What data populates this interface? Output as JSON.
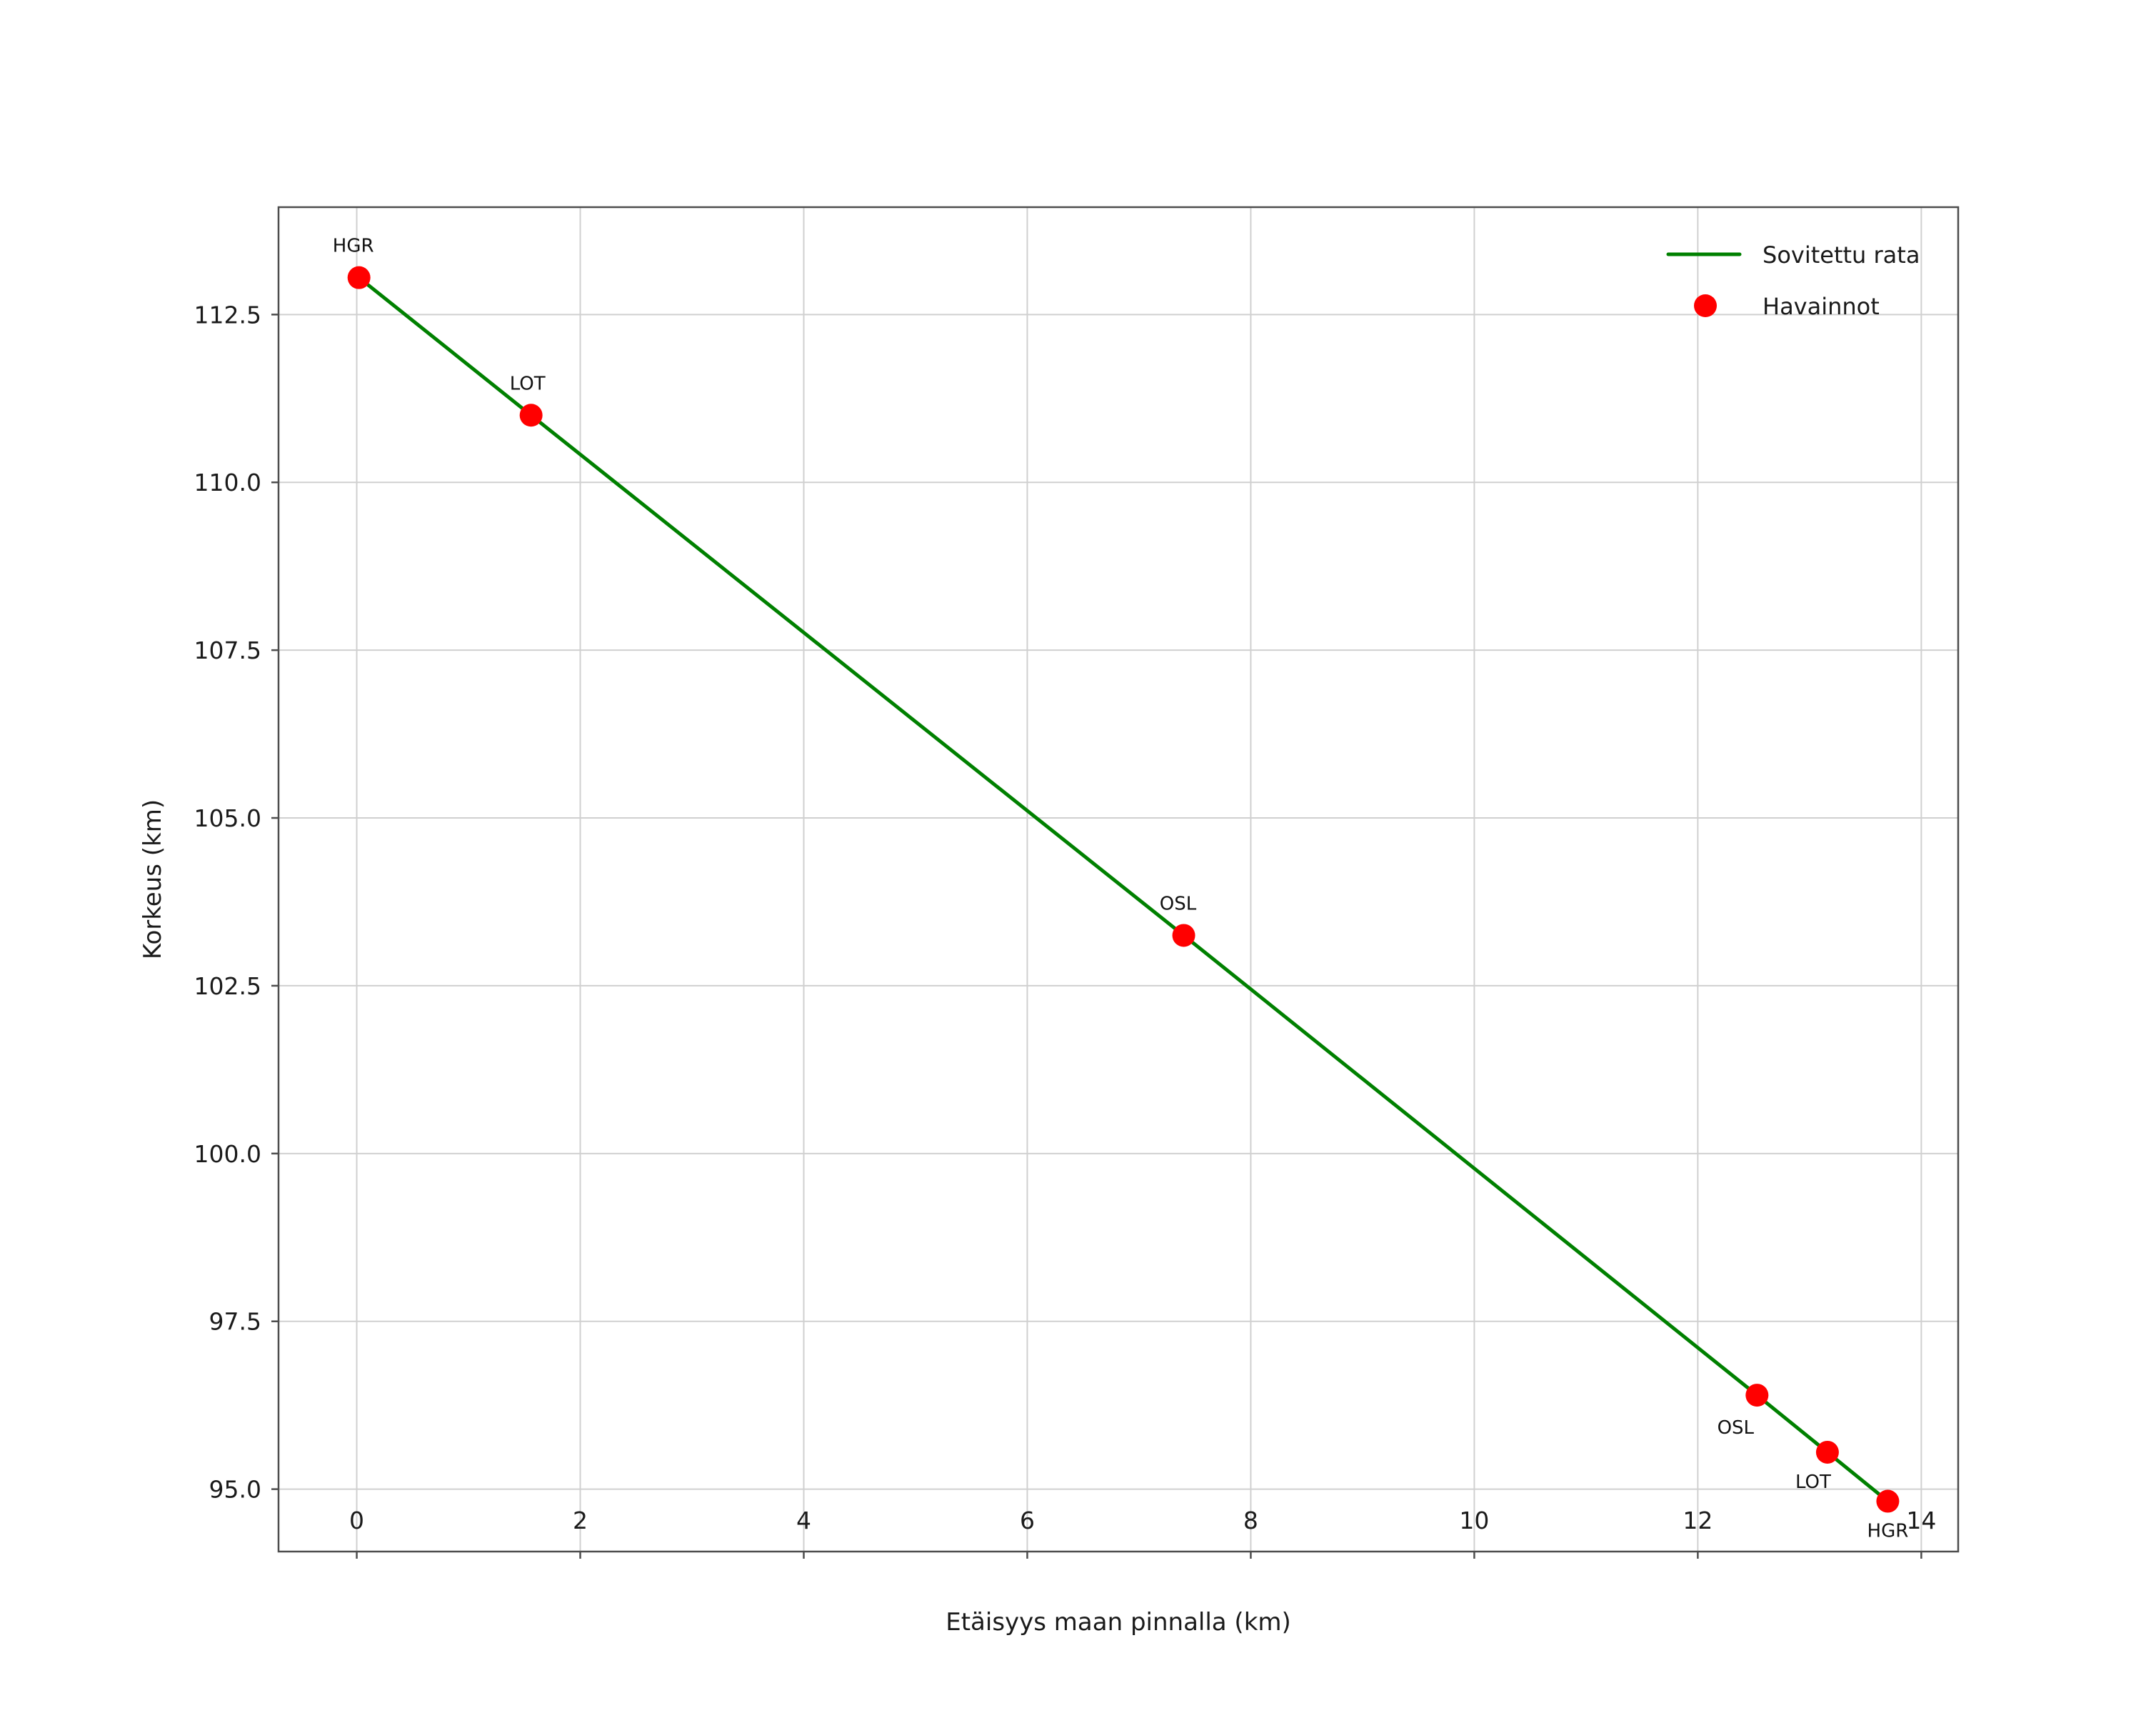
{
  "page": {
    "background": "#ffffff"
  },
  "chart_data": {
    "type": "scatter",
    "title": "",
    "xlabel": "Etäisyys maan pinnalla (km)",
    "ylabel": "Korkeus (km)",
    "xlim": [
      -0.7,
      14.33
    ],
    "ylim": [
      94.07,
      114.1
    ],
    "xticks": [
      0,
      2,
      4,
      6,
      8,
      10,
      12,
      14
    ],
    "xtick_labels": [
      "0",
      "2",
      "4",
      "6",
      "8",
      "10",
      "12",
      "14"
    ],
    "yticks": [
      95.0,
      97.5,
      100.0,
      102.5,
      105.0,
      107.5,
      110.0,
      112.5
    ],
    "ytick_labels": [
      "95.0",
      "97.5",
      "100.0",
      "102.5",
      "105.0",
      "107.5",
      "110.0",
      "112.5"
    ],
    "grid": true,
    "colors": {
      "line": "#008000",
      "points": "#ff0000",
      "grid": "#d0d0d0",
      "spine": "#4d4d4d",
      "text": "#1a1a1a"
    },
    "series": [
      {
        "name": "Sovitettu rata",
        "type": "line",
        "x": [
          0.02,
          1.56,
          7.4,
          12.53,
          13.16,
          13.7
        ],
        "y": [
          113.05,
          111.0,
          103.25,
          96.4,
          95.55,
          94.82
        ]
      },
      {
        "name": "Havainnot",
        "type": "scatter",
        "points": [
          {
            "station": "HGR",
            "x": 0.02,
            "y": 113.05,
            "label_dx": -8,
            "label_dy": -36
          },
          {
            "station": "LOT",
            "x": 1.56,
            "y": 111.0,
            "label_dx": -5,
            "label_dy": -36
          },
          {
            "station": "OSL",
            "x": 7.4,
            "y": 103.25,
            "label_dx": -8,
            "label_dy": -36
          },
          {
            "station": "OSL",
            "x": 12.53,
            "y": 96.4,
            "label_dx": -30,
            "label_dy": 54
          },
          {
            "station": "LOT",
            "x": 13.16,
            "y": 95.55,
            "label_dx": -20,
            "label_dy": 50
          },
          {
            "station": "HGR",
            "x": 13.7,
            "y": 94.82,
            "label_dx": 0,
            "label_dy": 50
          }
        ]
      }
    ],
    "legend": {
      "position": "upper right",
      "entries": [
        {
          "label": "Sovitettu rata",
          "marker": "line"
        },
        {
          "label": "Havainnot",
          "marker": "point"
        }
      ]
    }
  }
}
